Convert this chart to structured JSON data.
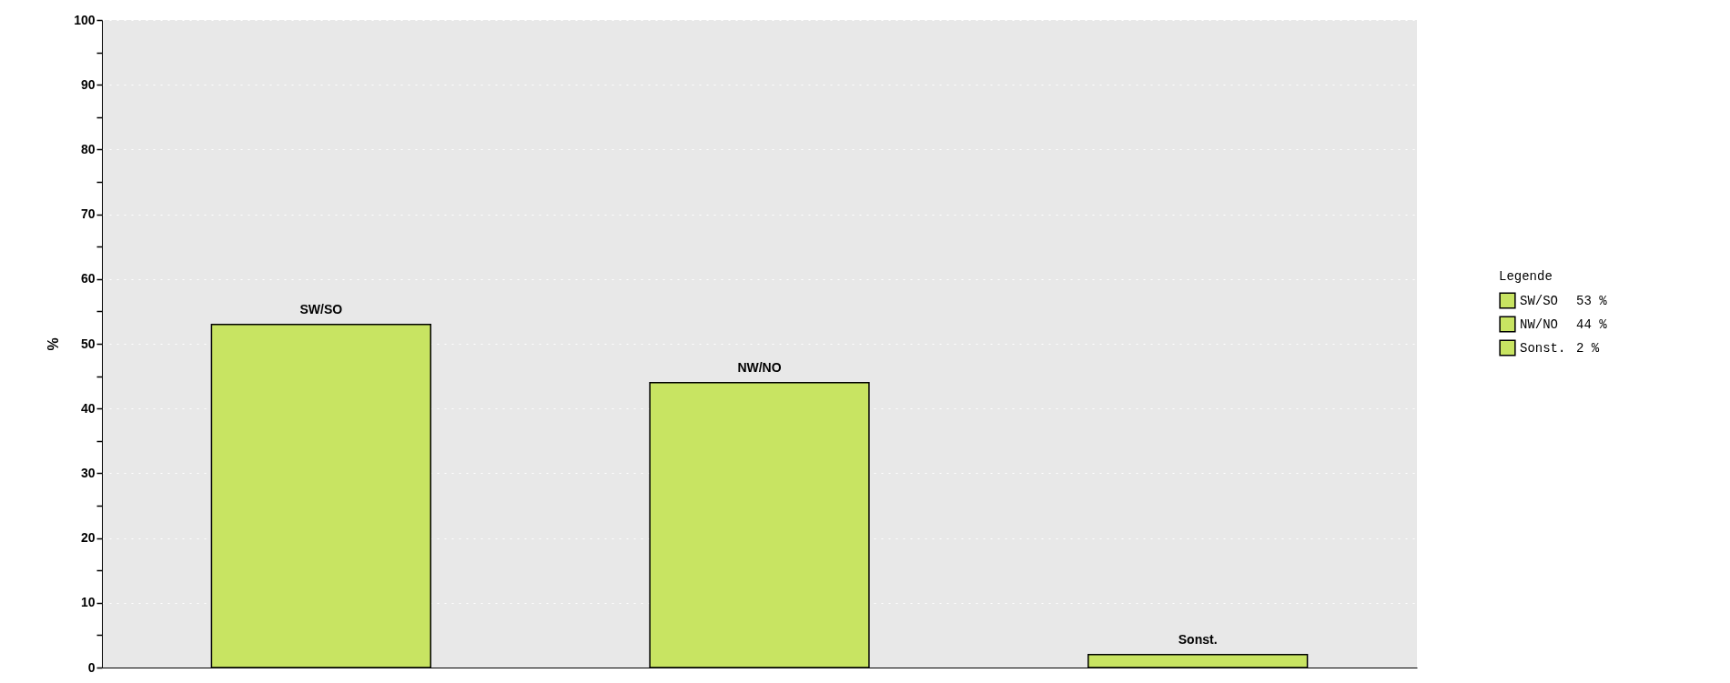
{
  "chart_data": {
    "type": "bar",
    "ylabel": "%",
    "legend_title": "Legende",
    "categories": [
      null,
      null,
      null
    ],
    "series": [
      {
        "name": "SW/SO",
        "color": "#c8e462",
        "values": [
          53,
          null,
          null
        ]
      },
      {
        "name": "NW/NO",
        "color": "#c8e462",
        "values": [
          null,
          44,
          null
        ]
      },
      {
        "name": "Sonst.",
        "color": "#c8e462",
        "values": [
          null,
          null,
          2
        ]
      }
    ],
    "annotations": [
      "53 %",
      "44 %",
      "2 %"
    ],
    "ylim": [
      0,
      100
    ],
    "yticks": [
      0,
      {
        "value": 5,
        "label": null
      },
      10,
      {
        "value": 15,
        "label": null
      },
      20,
      {
        "value": 25,
        "label": null
      },
      30,
      {
        "value": 35,
        "label": null
      },
      40,
      {
        "value": 45,
        "label": null
      },
      50,
      {
        "value": 55,
        "label": null
      },
      60,
      {
        "value": 65,
        "label": null
      },
      70,
      {
        "value": 75,
        "label": null
      },
      80,
      {
        "value": 85,
        "label": null
      },
      90,
      {
        "value": 95,
        "label": null
      },
      100
    ],
    "grid": "y",
    "legend": "right",
    "tick_labels": "y"
  }
}
